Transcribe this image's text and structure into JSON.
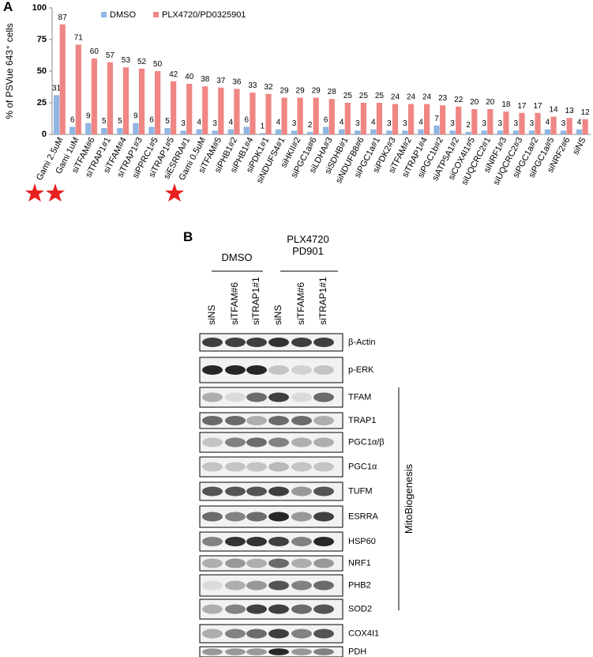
{
  "chart_data": {
    "type": "bar",
    "y_label": "% of PSVue 643⁺ cells",
    "categories": [
      "Gami 2.5uM",
      "Gami 1uM",
      "siTFAM#6",
      "siTRAP1#1",
      "siTFAM#4",
      "siTRAP1#3",
      "siPPRC1#5",
      "siTRAP1#5",
      "siESRRA#1",
      "Gami 0.5uM",
      "siTFAM#5",
      "siPHB1#2",
      "siPHB1#4",
      "siPDK1#1",
      "siNDUFS4#1",
      "siHKII#2",
      "siPGC1a#6",
      "siLDHA#3",
      "siSDHB#1",
      "siNDUFB8#6",
      "siPGC1a#1",
      "siPDK2#3",
      "siTFAM#2",
      "siTRAP1#4",
      "siPGC1b#2",
      "siATP5A1#2",
      "siCOX4I1#5",
      "siUQCRC2#1",
      "siNRF1#3",
      "siUQCRC2#3",
      "siPGC1a#2",
      "siPGC1a#5",
      "siNRF2#6",
      "siNS"
    ],
    "series": [
      {
        "name": "DMSO",
        "color": "#8fb6e3",
        "values": [
          31,
          6,
          9,
          5,
          5,
          9,
          6,
          5,
          3,
          4,
          3,
          4,
          6,
          1,
          4,
          3,
          2,
          6,
          4,
          3,
          4,
          3,
          3,
          4,
          7,
          3,
          2,
          3,
          3,
          3,
          3,
          4,
          3,
          4
        ]
      },
      {
        "name": "PLX4720/PD0325901",
        "color": "#ef8683",
        "values": [
          87,
          71,
          60,
          57,
          53,
          52,
          50,
          42,
          40,
          38,
          37,
          36,
          33,
          32,
          29,
          29,
          29,
          28,
          25,
          25,
          25,
          24,
          24,
          24,
          23,
          22,
          20,
          20,
          18,
          17,
          17,
          14,
          13,
          12
        ]
      }
    ],
    "ylim": [
      0,
      100
    ],
    "yticks": [
      0,
      25,
      50,
      75,
      100
    ],
    "legend": "top"
  },
  "panels": {
    "a": "A",
    "b": "B"
  },
  "blot": {
    "groups": [
      "DMSO",
      "PLX4720",
      "PD901"
    ],
    "lanes": [
      "siNS",
      "siTFAM#6",
      "siTRAP1#1",
      "siNS",
      "siTFAM#6",
      "siTRAP1#1"
    ],
    "proteins": [
      "β-Actin",
      "p-ERK",
      "TFAM",
      "TRAP1",
      "PGC1α/β",
      "PGC1α",
      "TUFM",
      "ESRRA",
      "HSP60",
      "NRF1",
      "PHB2",
      "SOD2",
      "COX4I1",
      "PDH"
    ],
    "bracket_label": "MitoBiogenesis"
  }
}
